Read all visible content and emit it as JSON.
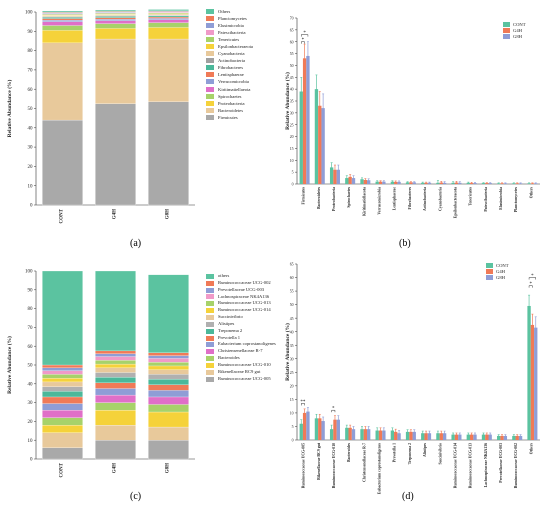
{
  "panel_labels": [
    "(a)",
    "(b)",
    "(c)",
    "(d)"
  ],
  "chart_data": [
    {
      "id": "a",
      "type": "bar",
      "stacked": true,
      "ylabel": "Relative Abundance (%)",
      "ylim": [
        0,
        100
      ],
      "yticks": [
        0,
        10,
        20,
        30,
        40,
        50,
        60,
        70,
        80,
        90,
        100
      ],
      "categories": [
        "CONT",
        "G4H",
        "G8H"
      ],
      "series": [
        {
          "name": "Firmicutes",
          "color": "#a9a9a9",
          "values": [
            44,
            52.5,
            53.5
          ]
        },
        {
          "name": "Bacteroidetes",
          "color": "#e8c99b",
          "values": [
            40,
            33.5,
            32.5
          ]
        },
        {
          "name": "Proteobacteria",
          "color": "#f5d23a",
          "values": [
            6.5,
            5.5,
            6
          ]
        },
        {
          "name": "Spirochaetes",
          "color": "#a7d26a",
          "values": [
            2.5,
            2.5,
            2.5
          ]
        },
        {
          "name": "Kiritimatiellaeota",
          "color": "#e06fc8",
          "values": [
            2,
            1.5,
            1.5
          ]
        },
        {
          "name": "Verrucomicrobia",
          "color": "#8f9dd6",
          "values": [
            0.8,
            0.8,
            0.7
          ]
        },
        {
          "name": "Lentisphaerae",
          "color": "#f07a57",
          "values": [
            0.8,
            0.8,
            0.7
          ]
        },
        {
          "name": "Fibrobacteres",
          "color": "#4bb89a",
          "values": [
            0.6,
            0.6,
            0.6
          ]
        },
        {
          "name": "Actinobacteria",
          "color": "#a0a0a0",
          "values": [
            0.4,
            0.4,
            0.4
          ]
        },
        {
          "name": "Cyanobacteria",
          "color": "#e8c99b",
          "values": [
            0.4,
            0.4,
            0.4
          ]
        },
        {
          "name": "Epsilonbacteraeota",
          "color": "#f5d23a",
          "values": [
            0.4,
            0.4,
            0.4
          ]
        },
        {
          "name": "Tenericutes",
          "color": "#a7d26a",
          "values": [
            0.4,
            0.4,
            0.4
          ]
        },
        {
          "name": "Patescibacteria",
          "color": "#f09ac8",
          "values": [
            0.4,
            0.4,
            0.4
          ]
        },
        {
          "name": "Elusimicrobia",
          "color": "#8f9dd6",
          "values": [
            0.3,
            0.3,
            0.3
          ]
        },
        {
          "name": "Planctomycetes",
          "color": "#f07a57",
          "values": [
            0.3,
            0.3,
            0.3
          ]
        },
        {
          "name": "Others",
          "color": "#5bc3a0",
          "values": [
            0.7,
            0.7,
            0.7
          ]
        }
      ]
    },
    {
      "id": "b",
      "type": "bar",
      "ylabel": "Relative Abundance (%)",
      "ylim": [
        0,
        70
      ],
      "yticks": [
        0,
        5,
        10,
        15,
        20,
        25,
        30,
        35,
        40,
        45,
        50,
        55,
        60,
        65,
        70
      ],
      "categories": [
        "Firmicutes",
        "Bacteroidetes",
        "Proteobacteria",
        "Spirochaetes",
        "Kiritimatiellaeota",
        "Verrucomicrobia",
        "Lentisphaerae",
        "Fibrobacteres",
        "Actinobacteria",
        "Cyanobacteria",
        "Epsilonbacteraeota",
        "Tenericutes",
        "Patescibacteria",
        "Elusimicrobia",
        "Planctomycetes",
        "Others"
      ],
      "series": [
        {
          "name": "CONT",
          "color": "#5bc3a0",
          "values": [
            39,
            40,
            7,
            2.5,
            2,
            1,
            1,
            0.7,
            0.5,
            0.5,
            0.5,
            0.5,
            0.4,
            0.3,
            0.3,
            0.3
          ]
        },
        {
          "name": "G4H",
          "color": "#f07a57",
          "values": [
            53,
            33,
            6,
            3,
            1.7,
            1,
            0.9,
            0.7,
            0.5,
            0.6,
            0.6,
            0.4,
            0.4,
            0.3,
            0.3,
            0.3
          ]
        },
        {
          "name": "G8H",
          "color": "#8f9dd6",
          "values": [
            54,
            32,
            6,
            2.5,
            1.6,
            1,
            0.9,
            0.7,
            0.5,
            0.5,
            0.5,
            0.4,
            0.4,
            0.3,
            0.3,
            0.3
          ]
        }
      ],
      "errors": [
        [
          6,
          6,
          2,
          1,
          0.6,
          0.4,
          0.4,
          0.3,
          0.3,
          1,
          0.5,
          0.3,
          0.2,
          0.2,
          0.2,
          0.2
        ],
        [
          6,
          6,
          2,
          1,
          0.6,
          0.4,
          0.4,
          0.3,
          0.3,
          0.5,
          0.5,
          0.3,
          0.2,
          0.2,
          0.2,
          0.2
        ],
        [
          6,
          6,
          2,
          1,
          0.6,
          0.4,
          0.4,
          0.3,
          0.3,
          0.5,
          0.5,
          0.3,
          0.2,
          0.2,
          0.2,
          0.2
        ]
      ],
      "annotations": [
        "*",
        "*"
      ],
      "legend_position": "top-right"
    },
    {
      "id": "c",
      "type": "bar",
      "stacked": true,
      "ylabel": "Relative Abundance (%)",
      "ylim": [
        0,
        100
      ],
      "yticks": [
        0,
        10,
        20,
        30,
        40,
        50,
        60,
        70,
        80,
        90,
        100
      ],
      "categories": [
        "CONT",
        "G4H",
        "G8H"
      ],
      "series": [
        {
          "name": "Ruminococcaceae UCG-005",
          "color": "#a9a9a9",
          "values": [
            6,
            10,
            10
          ]
        },
        {
          "name": "Rikenellaceae RC9 gut",
          "color": "#e8c99b",
          "values": [
            8,
            8,
            7
          ]
        },
        {
          "name": "Ruminococcaceae UCG-010",
          "color": "#f5d23a",
          "values": [
            4,
            8,
            8
          ]
        },
        {
          "name": "Bacteroides",
          "color": "#a7d26a",
          "values": [
            4,
            4,
            4
          ]
        },
        {
          "name": "Christensenellaceae R-7",
          "color": "#e06fc8",
          "values": [
            4,
            4,
            4
          ]
        },
        {
          "name": "Eubacterium coprostanoligenes",
          "color": "#8f9dd6",
          "values": [
            3.5,
            3.5,
            3.5
          ]
        },
        {
          "name": "Prevotella 1",
          "color": "#f07a57",
          "values": [
            3.5,
            3,
            3
          ]
        },
        {
          "name": "Treponema 2",
          "color": "#4bb89a",
          "values": [
            3,
            3,
            3
          ]
        },
        {
          "name": "Alistipes",
          "color": "#b0b0b0",
          "values": [
            2.5,
            2.5,
            2.5
          ]
        },
        {
          "name": "Succinivibrio",
          "color": "#e8c99b",
          "values": [
            2.5,
            2.5,
            2.5
          ]
        },
        {
          "name": "Ruminococcaceae UCG-014",
          "color": "#f5d23a",
          "values": [
            2,
            2,
            2
          ]
        },
        {
          "name": "Ruminococcaceae UCG-013",
          "color": "#a7d26a",
          "values": [
            2,
            2,
            2
          ]
        },
        {
          "name": "Lachnospiraceae NK4A136",
          "color": "#f09ac8",
          "values": [
            2,
            2,
            2
          ]
        },
        {
          "name": "Prevotellaceae UCG-003",
          "color": "#8f9dd6",
          "values": [
            1.5,
            1.5,
            1.5
          ]
        },
        {
          "name": "Ruminococcaceae UCG-002",
          "color": "#f07a57",
          "values": [
            1.5,
            1.5,
            1.5
          ]
        },
        {
          "name": "others",
          "color": "#5bc3a0",
          "values": [
            50,
            42.5,
            41.5
          ]
        }
      ]
    },
    {
      "id": "d",
      "type": "bar",
      "ylabel": "Relative Abundance (%)",
      "ylim": [
        0,
        65
      ],
      "yticks": [
        0,
        5,
        10,
        15,
        20,
        25,
        30,
        35,
        40,
        45,
        50,
        55,
        60,
        65
      ],
      "categories": [
        "Ruminococcaceae UCG-005",
        "Rikenellaceae RC9 gut",
        "Ruminococcaceae UCG-010",
        "Bacteroides",
        "Christensenellaceae R-7",
        "Eubacterium coprostanoligenes",
        "Prevotella 1",
        "Treponema 2",
        "Alistipes",
        "Succinivibrio",
        "Ruminococcaceae UCG-014",
        "Ruminococcaceae UCG-013",
        "Lachnospiraceae NK4A136",
        "Prevotellaceae UCG-003",
        "Ruminococcaceae UCG-002",
        "Others"
      ],
      "series": [
        {
          "name": "CONT",
          "color": "#5bc3a0",
          "values": [
            6,
            8,
            4,
            4.5,
            4,
            3.5,
            3.5,
            3,
            2.5,
            2.5,
            2,
            2,
            2,
            1.5,
            1.5,
            49.5
          ]
        },
        {
          "name": "G4H",
          "color": "#f07a57",
          "values": [
            10,
            8,
            7.5,
            4.5,
            4,
            3.5,
            3,
            3,
            2.5,
            2.5,
            2,
            2,
            2,
            1.5,
            1.5,
            42.5
          ]
        },
        {
          "name": "G8H",
          "color": "#8f9dd6",
          "values": [
            10.5,
            7,
            7.5,
            4,
            4,
            3.5,
            2.5,
            3,
            2.5,
            2.5,
            2,
            2,
            2,
            1.5,
            1.5,
            41.5
          ]
        }
      ],
      "errors": [
        [
          1.5,
          1.5,
          1.5,
          1,
          1,
          1,
          1,
          0.8,
          0.8,
          0.8,
          0.6,
          0.6,
          0.6,
          0.5,
          0.5,
          4
        ],
        [
          1.5,
          1.5,
          1.5,
          1,
          1,
          1,
          1,
          0.8,
          0.8,
          0.8,
          0.6,
          0.6,
          0.6,
          0.5,
          0.5,
          4
        ],
        [
          1.5,
          1.5,
          1.5,
          1,
          1,
          1,
          1,
          0.8,
          0.8,
          0.8,
          0.6,
          0.6,
          0.6,
          0.5,
          0.5,
          4
        ]
      ],
      "annotations": [
        "**",
        "*",
        "*",
        "*"
      ],
      "legend_position": "top-right"
    }
  ]
}
